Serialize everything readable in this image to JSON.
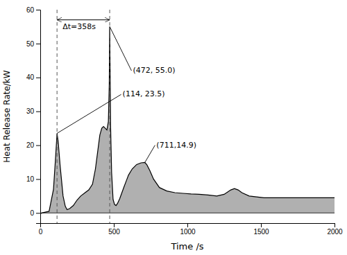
{
  "chart_data": {
    "type": "area",
    "title": "",
    "xlabel": "Time /s",
    "ylabel": "Heat Release Rate/kW",
    "xlim": [
      0,
      2000
    ],
    "ylim": [
      -3,
      60
    ],
    "xticks": [
      0,
      500,
      1000,
      1500,
      2000
    ],
    "yticks": [
      0,
      10,
      20,
      30,
      40,
      50,
      60
    ],
    "grid": false,
    "color": "#000000",
    "fill_color": "#b0b0b0",
    "baseline": 0,
    "x": [
      0,
      10,
      60,
      90,
      105,
      114,
      122,
      135,
      155,
      170,
      182,
      200,
      225,
      250,
      275,
      305,
      330,
      355,
      375,
      390,
      405,
      418,
      430,
      442,
      453,
      463,
      469,
      472,
      475,
      478,
      485,
      495,
      505,
      515,
      525,
      540,
      555,
      570,
      585,
      600,
      625,
      655,
      685,
      711,
      725,
      745,
      770,
      810,
      860,
      915,
      970,
      1025,
      1080,
      1140,
      1200,
      1250,
      1295,
      1320,
      1345,
      1370,
      1420,
      1520,
      1650,
      1800,
      1950,
      2000
    ],
    "values": [
      -0.3,
      0.0,
      0.5,
      7,
      17,
      23.5,
      21,
      14,
      5,
      2.0,
      1.0,
      1.3,
      2.2,
      3.8,
      5.0,
      6.0,
      6.8,
      8.5,
      13,
      18,
      23,
      25,
      25.5,
      25,
      24.5,
      27,
      38,
      55.0,
      42,
      26,
      12,
      4,
      2.5,
      2.2,
      2.8,
      4.2,
      6.0,
      7.8,
      9.5,
      11.2,
      13.0,
      14.3,
      14.8,
      14.9,
      14.2,
      12.5,
      10.0,
      7.5,
      6.5,
      6.0,
      5.8,
      5.6,
      5.5,
      5.3,
      5.0,
      5.5,
      6.8,
      7.2,
      6.8,
      6.0,
      5.0,
      4.5,
      4.5,
      4.5,
      4.5,
      4.5
    ],
    "vlines": [
      {
        "x": 114,
        "color": "#555555",
        "line_style": "dashed"
      },
      {
        "x": 472,
        "color": "#555555",
        "line_style": "dashed"
      }
    ],
    "annotations": [
      {
        "text": "(472, 55.0)",
        "x": 472,
        "y": 55.0,
        "text_x": 620,
        "text_y": 42
      },
      {
        "text": "(114, 23.5)",
        "x": 114,
        "y": 23.5,
        "text_x": 550,
        "text_y": 35
      },
      {
        "text": "(711,14.9)",
        "x": 711,
        "y": 14.9,
        "text_x": 780,
        "text_y": 20
      }
    ],
    "arrow": {
      "x1": 114,
      "x2": 472,
      "y": 57,
      "label": "Δt=358s"
    }
  }
}
